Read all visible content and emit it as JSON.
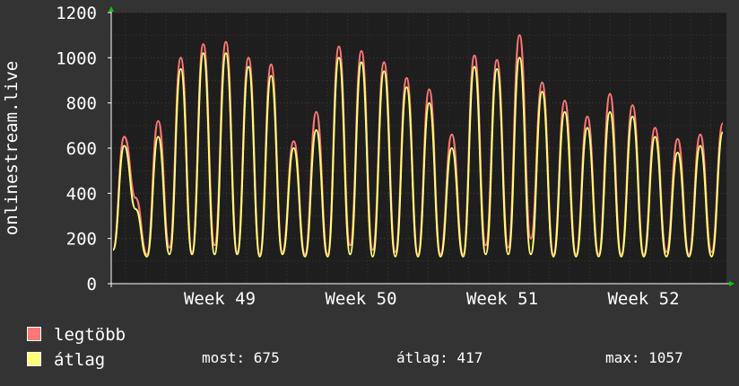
{
  "chart_data": {
    "type": "line",
    "ylabel": "onlinestream.live",
    "ylim": [
      0,
      1200
    ],
    "yticks": [
      "0",
      "200",
      "400",
      "600",
      "800",
      "1000",
      "1200"
    ],
    "xticks": [
      "Week 49",
      "Week 50",
      "Week 51",
      "Week 52"
    ],
    "grid": true,
    "series": [
      {
        "name": "legtöbb",
        "color": "#ff7777",
        "values": [
          150,
          650,
          380,
          130,
          720,
          160,
          1000,
          140,
          1060,
          170,
          1070,
          140,
          1000,
          130,
          970,
          140,
          630,
          130,
          760,
          130,
          1050,
          170,
          1030,
          150,
          980,
          140,
          910,
          130,
          860,
          130,
          660,
          130,
          1010,
          170,
          990,
          160,
          1100,
          200,
          890,
          130,
          810,
          130,
          740,
          130,
          840,
          130,
          790,
          130,
          690,
          140,
          640,
          130,
          660,
          140,
          710
        ]
      },
      {
        "name": "átlag",
        "color": "#ffff77",
        "values": [
          150,
          610,
          330,
          120,
          650,
          130,
          950,
          130,
          1020,
          130,
          1020,
          130,
          960,
          120,
          920,
          130,
          600,
          120,
          680,
          120,
          1000,
          130,
          980,
          120,
          940,
          120,
          870,
          120,
          800,
          120,
          600,
          120,
          960,
          130,
          950,
          130,
          1000,
          130,
          850,
          120,
          760,
          120,
          690,
          120,
          760,
          120,
          740,
          120,
          650,
          120,
          580,
          120,
          610,
          120,
          670
        ]
      }
    ]
  },
  "legend": [
    {
      "label": "legtöbb",
      "color": "#ff7777"
    },
    {
      "label": "átlag",
      "color": "#ffff77"
    }
  ],
  "stats": {
    "current": "most: 675",
    "average": "átlag: 417",
    "max": "max: 1057"
  }
}
